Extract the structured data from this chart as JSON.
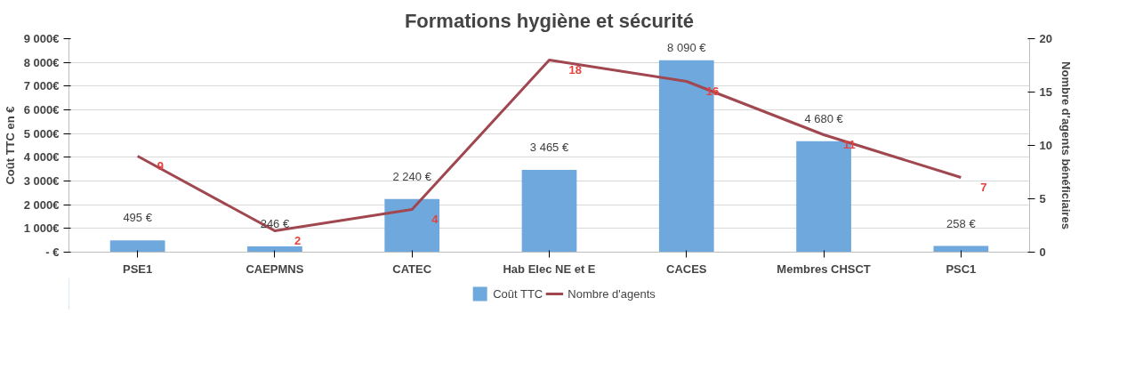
{
  "chart_data": {
    "type": "bar",
    "title": "Formations hygiène et sécurité",
    "ylabel": "Coût TTC en €",
    "y2label": "Nombre d'agents bénéficiaires",
    "categories": [
      "PSE1",
      "CAEPMNS",
      "CATEC",
      "Hab Elec NE et E",
      "CACES",
      "Membres CHSCT",
      "PSC1"
    ],
    "series": [
      {
        "name": "Coût TTC",
        "color": "#6fa8dc",
        "values": [
          495,
          246,
          2240,
          3465,
          8090,
          4680,
          258
        ],
        "value_labels": [
          "495 €",
          "246 €",
          "2 240 €",
          "3 465 €",
          "8 090 €",
          "4 680 €",
          "258 €"
        ]
      },
      {
        "name": "Nombre d'agents",
        "type": "line",
        "axis": "y2",
        "color": "#a0474f",
        "values": [
          9,
          2,
          4,
          18,
          16,
          11,
          7
        ],
        "value_labels": [
          "9",
          "2",
          "4",
          "18",
          "16",
          "11",
          "7"
        ]
      }
    ],
    "ylim": [
      0,
      9000
    ],
    "yticks": [
      {
        "value": 0,
        "label": "- €"
      },
      {
        "value": 1000,
        "label": "1 000€"
      },
      {
        "value": 2000,
        "label": "2 000€"
      },
      {
        "value": 3000,
        "label": "3 000€"
      },
      {
        "value": 4000,
        "label": "4 000€"
      },
      {
        "value": 5000,
        "label": "5 000€"
      },
      {
        "value": 6000,
        "label": "6 000€"
      },
      {
        "value": 7000,
        "label": "7 000€"
      },
      {
        "value": 8000,
        "label": "8 000€"
      },
      {
        "value": 9000,
        "label": "9 000€"
      }
    ],
    "y2lim": [
      0,
      20
    ],
    "y2ticks": [
      0,
      5,
      10,
      15,
      20
    ],
    "grid": "y",
    "legend": "bottom"
  }
}
